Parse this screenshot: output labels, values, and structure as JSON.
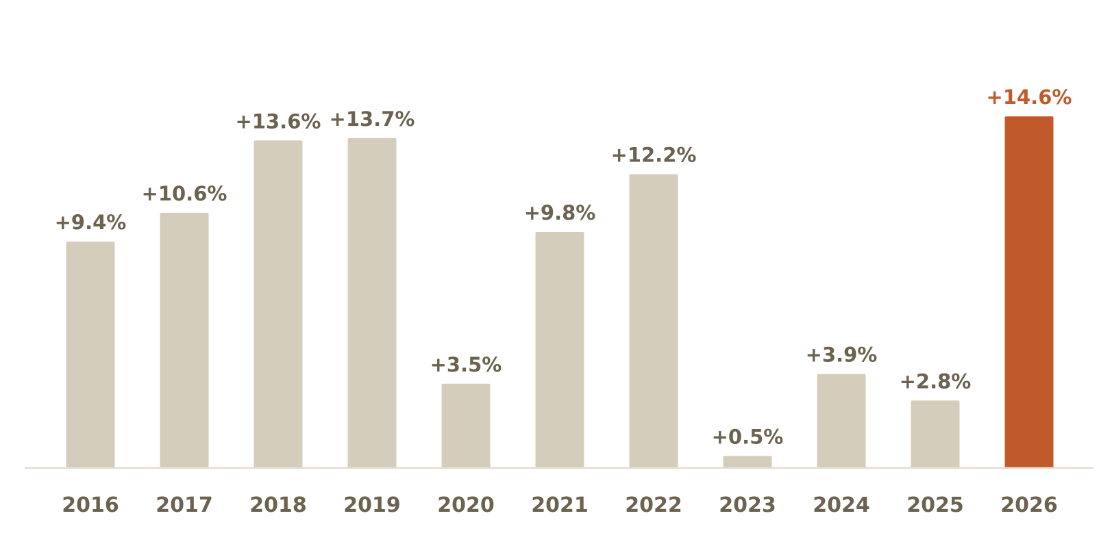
{
  "chart_data": {
    "type": "bar",
    "title": "",
    "xlabel": "",
    "ylabel": "",
    "categories": [
      "2016",
      "2017",
      "2018",
      "2019",
      "2020",
      "2021",
      "2022",
      "2023",
      "2024",
      "2025",
      "2026"
    ],
    "values": [
      9.4,
      10.6,
      13.6,
      13.7,
      3.5,
      9.8,
      12.2,
      0.5,
      3.9,
      2.8,
      14.6
    ],
    "value_labels": [
      "+9.4%",
      "+10.6%",
      "+13.6%",
      "+13.7%",
      "+3.5%",
      "+9.8%",
      "+12.2%",
      "+0.5%",
      "+3.9%",
      "+2.8%",
      "+14.6%"
    ],
    "ylim": [
      0,
      16
    ],
    "grid": false,
    "highlight_index": 10,
    "colors": {
      "bar": "#d5cdbb",
      "highlight_bar": "#c05a2a",
      "label": "#6b6350",
      "highlight_label": "#c05a2a",
      "axis": "#e3ddd0"
    }
  }
}
